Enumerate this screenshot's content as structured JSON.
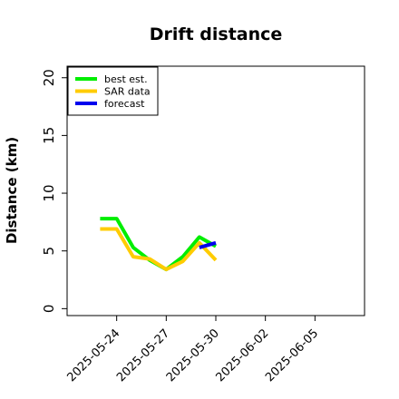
{
  "chart_data": {
    "type": "line",
    "title": "Drift distance",
    "xlabel": "",
    "ylabel": "Distance (km)",
    "x_range": [
      "2025-05-21",
      "2025-06-08"
    ],
    "ylim": [
      -0.6,
      21.0
    ],
    "yticks": [
      0,
      5,
      10,
      15,
      20
    ],
    "xticks": [
      "2025-05-24",
      "2025-05-27",
      "2025-05-30",
      "2025-06-02",
      "2025-06-05"
    ],
    "grid": false,
    "legend_position": "top-left",
    "series": [
      {
        "name": "best est.",
        "color": "#00ee00",
        "x": [
          "2025-05-23",
          "2025-05-24",
          "2025-05-25",
          "2025-05-26",
          "2025-05-27",
          "2025-05-28",
          "2025-05-29",
          "2025-05-30"
        ],
        "y": [
          7.8,
          7.8,
          5.3,
          4.2,
          3.4,
          4.5,
          6.2,
          5.4
        ]
      },
      {
        "name": "SAR data",
        "color": "#ffcc00",
        "x": [
          "2025-05-23",
          "2025-05-24",
          "2025-05-25",
          "2025-05-26",
          "2025-05-27",
          "2025-05-28",
          "2025-05-29",
          "2025-05-30"
        ],
        "y": [
          6.9,
          6.9,
          4.5,
          4.3,
          3.4,
          4.1,
          5.7,
          4.2
        ]
      },
      {
        "name": "forecast",
        "color": "#0000ee",
        "x": [
          "2025-05-29",
          "2025-05-30"
        ],
        "y": [
          5.3,
          5.7
        ]
      }
    ]
  }
}
